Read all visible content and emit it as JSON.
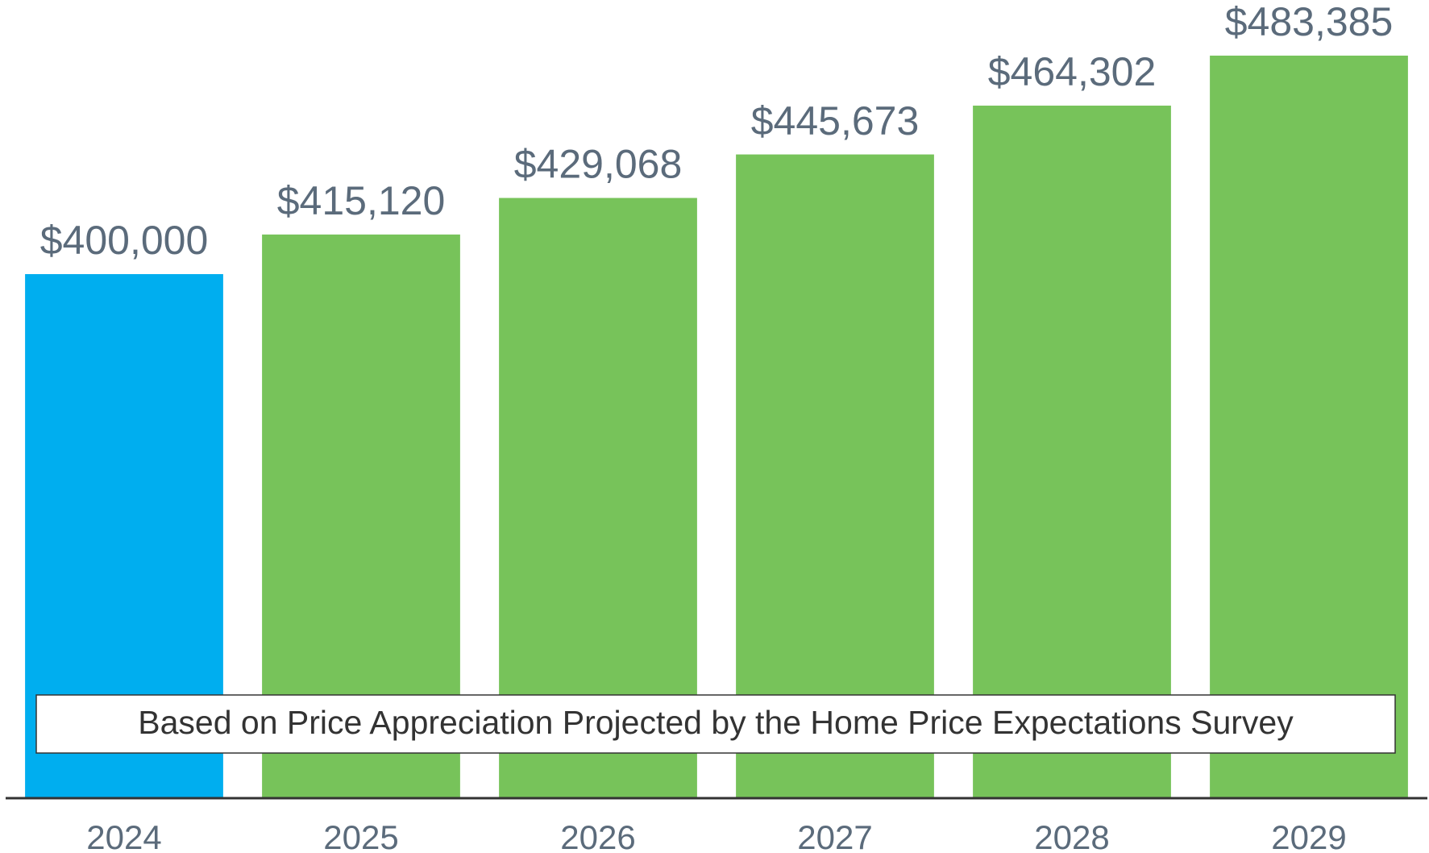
{
  "chart_data": {
    "type": "bar",
    "annotation": "Based on Price Appreciation Projected by the Home Price Expectations Survey",
    "categories": [
      "2024",
      "2025",
      "2026",
      "2027",
      "2028",
      "2029"
    ],
    "values": [
      400000,
      415120,
      429068,
      445673,
      464302,
      483385
    ],
    "value_labels": [
      "$400,000",
      "$415,120",
      "$429,068",
      "$445,673",
      "$464,302",
      "$483,385"
    ],
    "colors": [
      "#00aeef",
      "#77c35a",
      "#77c35a",
      "#77c35a",
      "#77c35a",
      "#77c35a"
    ],
    "ylim": [
      200000,
      500000
    ]
  }
}
